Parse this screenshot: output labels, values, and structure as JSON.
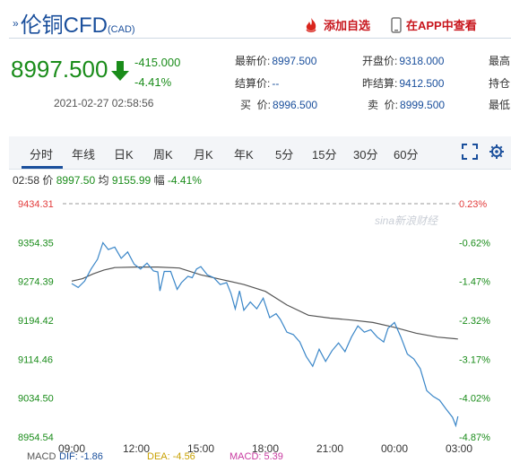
{
  "header": {
    "title": "伦铜CFD",
    "subtitle": "(CAD)",
    "add_watch_label": "添加自选",
    "open_app_label": "在APP中查看"
  },
  "quote": {
    "last_price": "8997.500",
    "change": "-415.000",
    "change_pct": "-4.41%",
    "timestamp": "2021-02-27 02:58:56",
    "fields": [
      {
        "key": "最新价:",
        "value": "8997.500"
      },
      {
        "key": "开盘价:",
        "value": "9318.000"
      },
      {
        "key": "最高",
        "value": ""
      },
      {
        "key": "结算价:",
        "value": "--"
      },
      {
        "key": "昨结算:",
        "value": "9412.500"
      },
      {
        "key": "持仓",
        "value": ""
      },
      {
        "key": "买  价:",
        "value": "8996.500"
      },
      {
        "key": "卖  价:",
        "value": "8999.500"
      },
      {
        "key": "最低",
        "value": ""
      }
    ]
  },
  "tabs": [
    "分时",
    "年线",
    "日K",
    "周K",
    "月K",
    "年K",
    "5分",
    "15分",
    "30分",
    "60分"
  ],
  "chart_info": {
    "time": "02:58",
    "price_label": "价",
    "price": "8997.50",
    "avg_label": "均",
    "avg": "9155.99",
    "amp_label": "幅",
    "amp": "-4.41%"
  },
  "watermark": "sina新浪财经",
  "macd": {
    "label": "MACD",
    "dif": "DIF: -1.86",
    "dea": "DEA: -4.56",
    "macd": "MACD: 5.39"
  },
  "colors": {
    "up": "#e23b3b",
    "down": "#1a8c1a",
    "price_line": "#3a86c8",
    "avg_line": "#555555",
    "link": "#1a4f9c"
  },
  "chart_data": {
    "type": "line",
    "x_ticks": [
      "09:00",
      "12:00",
      "15:00",
      "18:00",
      "21:00",
      "00:00",
      "03:00"
    ],
    "y_ticks": [
      "9434.31",
      "9354.35",
      "9274.39",
      "9194.42",
      "9114.46",
      "9034.50",
      "8954.54"
    ],
    "y_pct_ticks": [
      "0.23%",
      "-0.62%",
      "-1.47%",
      "-2.32%",
      "-3.17%",
      "-4.02%",
      "-4.87%"
    ],
    "ylim": [
      8954.54,
      9434.31
    ],
    "reference_price": 9412.5,
    "x_range_hours": [
      0,
      18
    ],
    "series": [
      {
        "values": [
          [
            0,
            9270
          ],
          [
            0.3,
            9262
          ],
          [
            0.6,
            9275
          ],
          [
            0.9,
            9300
          ],
          [
            1.2,
            9320
          ],
          [
            1.45,
            9354
          ],
          [
            1.7,
            9340
          ],
          [
            2.0,
            9345
          ],
          [
            2.3,
            9322
          ],
          [
            2.6,
            9335
          ],
          [
            2.9,
            9310
          ],
          [
            3.2,
            9300
          ],
          [
            3.5,
            9312
          ],
          [
            3.8,
            9296
          ],
          [
            4.0,
            9294
          ],
          [
            4.1,
            9255
          ],
          [
            4.3,
            9295
          ],
          [
            4.6,
            9295
          ],
          [
            4.9,
            9258
          ],
          [
            5.1,
            9272
          ],
          [
            5.4,
            9285
          ],
          [
            5.6,
            9282
          ],
          [
            5.8,
            9300
          ],
          [
            6.0,
            9305
          ],
          [
            6.3,
            9288
          ],
          [
            6.6,
            9282
          ],
          [
            6.9,
            9268
          ],
          [
            7.2,
            9272
          ],
          [
            7.4,
            9250
          ],
          [
            7.6,
            9218
          ],
          [
            7.8,
            9255
          ],
          [
            8.0,
            9215
          ],
          [
            8.3,
            9232
          ],
          [
            8.6,
            9218
          ],
          [
            8.9,
            9240
          ],
          [
            9.2,
            9200
          ],
          [
            9.5,
            9208
          ],
          [
            9.7,
            9196
          ],
          [
            10.0,
            9170
          ],
          [
            10.3,
            9165
          ],
          [
            10.6,
            9150
          ],
          [
            10.9,
            9120
          ],
          [
            11.2,
            9100
          ],
          [
            11.5,
            9135
          ],
          [
            11.8,
            9110
          ],
          [
            12.1,
            9132
          ],
          [
            12.4,
            9148
          ],
          [
            12.7,
            9130
          ],
          [
            13.0,
            9160
          ],
          [
            13.3,
            9183
          ],
          [
            13.6,
            9170
          ],
          [
            13.9,
            9175
          ],
          [
            14.2,
            9160
          ],
          [
            14.5,
            9150
          ],
          [
            14.7,
            9178
          ],
          [
            15.0,
            9190
          ],
          [
            15.3,
            9160
          ],
          [
            15.6,
            9125
          ],
          [
            15.9,
            9115
          ],
          [
            16.2,
            9095
          ],
          [
            16.5,
            9050
          ],
          [
            16.8,
            9038
          ],
          [
            17.1,
            9030
          ],
          [
            17.4,
            9012
          ],
          [
            17.7,
            8995
          ],
          [
            17.85,
            8978
          ],
          [
            17.95,
            8997
          ]
        ]
      },
      {
        "values": [
          [
            0,
            9275
          ],
          [
            0.5,
            9280
          ],
          [
            1.0,
            9290
          ],
          [
            1.5,
            9298
          ],
          [
            2.0,
            9303
          ],
          [
            3.0,
            9304
          ],
          [
            4.0,
            9304
          ],
          [
            5.0,
            9302
          ],
          [
            6.0,
            9288
          ],
          [
            7.0,
            9278
          ],
          [
            8.0,
            9268
          ],
          [
            9.0,
            9254
          ],
          [
            10.0,
            9226
          ],
          [
            11.0,
            9205
          ],
          [
            12.0,
            9199
          ],
          [
            13.0,
            9195
          ],
          [
            14.0,
            9190
          ],
          [
            15.0,
            9180
          ],
          [
            16.0,
            9168
          ],
          [
            17.0,
            9160
          ],
          [
            17.95,
            9156
          ]
        ]
      }
    ],
    "grid": false
  }
}
